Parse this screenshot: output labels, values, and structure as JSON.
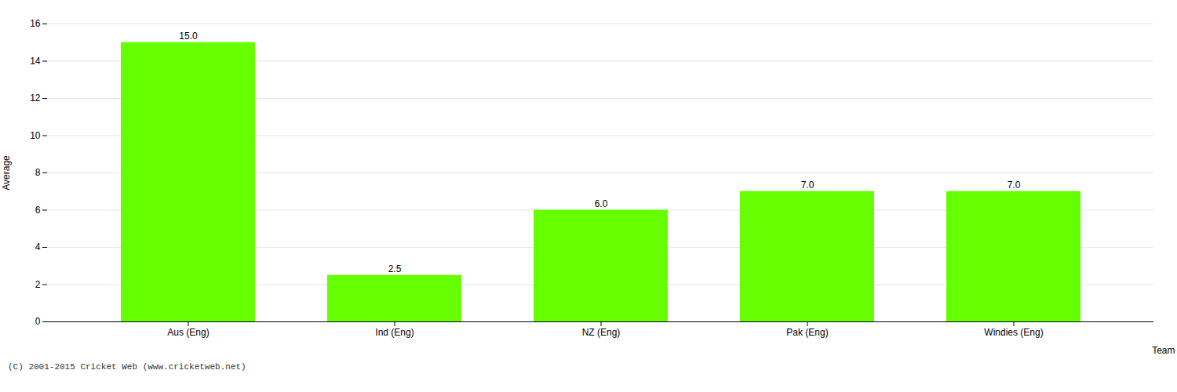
{
  "chart_data": {
    "type": "bar",
    "categories": [
      "Aus (Eng)",
      "Ind (Eng)",
      "NZ (Eng)",
      "Pak (Eng)",
      "Windies (Eng)"
    ],
    "values": [
      15.0,
      2.5,
      6.0,
      7.0,
      7.0
    ],
    "value_labels": [
      "15.0",
      "2.5",
      "6.0",
      "7.0",
      "7.0"
    ],
    "data_labels": true,
    "color": "#66ff00",
    "xlabel": "Team",
    "ylabel": "Average",
    "ylim": [
      0,
      16
    ],
    "yticks": [
      0,
      2,
      4,
      6,
      8,
      10,
      12,
      14,
      16
    ],
    "grid": true,
    "annotations": [
      "(C) 2001-2015 Cricket Web (www.cricketweb.net)"
    ]
  }
}
